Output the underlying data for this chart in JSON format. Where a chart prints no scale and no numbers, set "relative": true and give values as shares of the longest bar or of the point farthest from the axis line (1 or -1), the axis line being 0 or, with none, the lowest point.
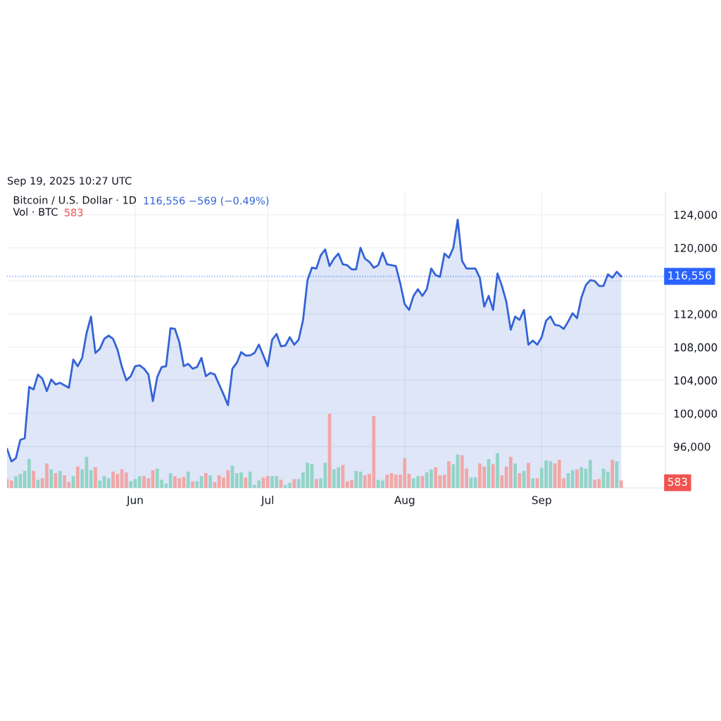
{
  "chart_data": [
    {
      "type": "area",
      "title": "Bitcoin / U.S. Dollar · 1D",
      "annotations": [
        "Sep 19, 2025 10:27 UTC",
        "116,556 −569 (−0.49%)"
      ],
      "x": [
        "2025-05-03",
        "2025-05-04",
        "2025-05-05",
        "2025-05-06",
        "2025-05-07",
        "2025-05-08",
        "2025-05-09",
        "2025-05-10",
        "2025-05-11",
        "2025-05-12",
        "2025-05-13",
        "2025-05-14",
        "2025-05-15",
        "2025-05-16",
        "2025-05-17",
        "2025-05-18",
        "2025-05-19",
        "2025-05-20",
        "2025-05-21",
        "2025-05-22",
        "2025-05-23",
        "2025-05-24",
        "2025-05-25",
        "2025-05-26",
        "2025-05-27",
        "2025-05-28",
        "2025-05-29",
        "2025-05-30",
        "2025-05-31",
        "2025-06-01",
        "2025-06-02",
        "2025-06-03",
        "2025-06-04",
        "2025-06-05",
        "2025-06-06",
        "2025-06-07",
        "2025-06-08",
        "2025-06-09",
        "2025-06-10",
        "2025-06-11",
        "2025-06-12",
        "2025-06-13",
        "2025-06-14",
        "2025-06-15",
        "2025-06-16",
        "2025-06-17",
        "2025-06-18",
        "2025-06-19",
        "2025-06-20",
        "2025-06-21",
        "2025-06-22",
        "2025-06-23",
        "2025-06-24",
        "2025-06-25",
        "2025-06-26",
        "2025-06-27",
        "2025-06-28",
        "2025-06-29",
        "2025-06-30",
        "2025-07-01",
        "2025-07-02",
        "2025-07-03",
        "2025-07-04",
        "2025-07-05",
        "2025-07-06",
        "2025-07-07",
        "2025-07-08",
        "2025-07-09",
        "2025-07-10",
        "2025-07-11",
        "2025-07-12",
        "2025-07-13",
        "2025-07-14",
        "2025-07-15",
        "2025-07-16",
        "2025-07-17",
        "2025-07-18",
        "2025-07-19",
        "2025-07-20",
        "2025-07-21",
        "2025-07-22",
        "2025-07-23",
        "2025-07-24",
        "2025-07-25",
        "2025-07-26",
        "2025-07-27",
        "2025-07-28",
        "2025-07-29",
        "2025-07-30",
        "2025-07-31",
        "2025-08-01",
        "2025-08-02",
        "2025-08-03",
        "2025-08-04",
        "2025-08-05",
        "2025-08-06",
        "2025-08-07",
        "2025-08-08",
        "2025-08-09",
        "2025-08-10",
        "2025-08-11",
        "2025-08-12",
        "2025-08-13",
        "2025-08-14",
        "2025-08-15",
        "2025-08-16",
        "2025-08-17",
        "2025-08-18",
        "2025-08-19",
        "2025-08-20",
        "2025-08-21",
        "2025-08-22",
        "2025-08-23",
        "2025-08-24",
        "2025-08-25",
        "2025-08-26",
        "2025-08-27",
        "2025-08-28",
        "2025-08-29",
        "2025-08-30",
        "2025-08-31",
        "2025-09-01",
        "2025-09-02",
        "2025-09-03",
        "2025-09-04",
        "2025-09-05",
        "2025-09-06",
        "2025-09-07",
        "2025-09-08",
        "2025-09-09",
        "2025-09-10",
        "2025-09-11",
        "2025-09-12",
        "2025-09-13",
        "2025-09-14",
        "2025-09-15",
        "2025-09-16",
        "2025-09-17",
        "2025-09-18",
        "2025-09-19"
      ],
      "series": [
        {
          "color": "#3363d6",
          "values": [
            95700,
            94200,
            94600,
            96800,
            97000,
            103200,
            102900,
            104700,
            104200,
            102700,
            104100,
            103500,
            103700,
            103400,
            103100,
            106500,
            105700,
            106700,
            109700,
            111700,
            107300,
            107800,
            109000,
            109400,
            109000,
            107700,
            105600,
            104000,
            104500,
            105700,
            105800,
            105400,
            104700,
            101500,
            104400,
            105600,
            105700,
            110300,
            110200,
            108600,
            105700,
            106000,
            105400,
            105600,
            106700,
            104500,
            104900,
            104700,
            103500,
            102300,
            101000,
            105400,
            106100,
            107400,
            107000,
            107000,
            107300,
            108300,
            107000,
            105700,
            108900,
            109600,
            108100,
            108200,
            109200,
            108300,
            108900,
            111300,
            116100,
            117600,
            117500,
            119100,
            119800,
            117800,
            118700,
            119300,
            118000,
            117900,
            117400,
            117400,
            120000,
            118700,
            118300,
            117600,
            117900,
            119400,
            118000,
            117900,
            117800,
            115700,
            113200,
            112500,
            114200,
            115000,
            114200,
            115000,
            117500,
            116700,
            116500,
            119300,
            118800,
            120000,
            123400,
            118400,
            117500,
            117500,
            117500,
            116400,
            112900,
            114200,
            112500,
            116900,
            115400,
            113500,
            110100,
            111700,
            111300,
            112500,
            108300,
            108800,
            108300,
            109200,
            111200,
            111700,
            110700,
            110600,
            110200,
            111100,
            112100,
            111500,
            114000,
            115500,
            116100,
            116000,
            115400,
            115400,
            116800,
            116400,
            117100,
            116556
          ]
        }
      ],
      "xlim": [
        "2025-05-03",
        "2025-09-29"
      ],
      "xticks": [
        {
          "value": "2025-06-01",
          "label": "Jun"
        },
        {
          "value": "2025-07-01",
          "label": "Jul"
        },
        {
          "value": "2025-08-01",
          "label": "Aug"
        },
        {
          "value": "2025-09-01",
          "label": "Sep"
        }
      ],
      "ylim": [
        91000,
        126800
      ],
      "yticks": [
        {
          "value": 96000,
          "label": "96,000"
        },
        {
          "value": 100000,
          "label": "100,000"
        },
        {
          "value": 104000,
          "label": "104,000"
        },
        {
          "value": 108000,
          "label": "108,000"
        },
        {
          "value": 112000,
          "label": "112,000"
        },
        {
          "value": 116000,
          "label": null
        },
        {
          "value": 120000,
          "label": "120,000"
        },
        {
          "value": 124000,
          "label": "124,000"
        }
      ],
      "ref_lines": [
        {
          "axis": "y",
          "value": 116556,
          "label": "116,556",
          "color": "#2962ff",
          "line_style": "dotted"
        }
      ],
      "grid": true
    },
    {
      "type": "bar",
      "relative": true,
      "title": "Vol · BTC",
      "annotations": [
        "583",
        "583"
      ],
      "tick_labels": false,
      "xlim": [
        "2025-05-03",
        "2025-09-29"
      ],
      "x": [
        "2025-05-03",
        "2025-05-04",
        "2025-05-05",
        "2025-05-06",
        "2025-05-07",
        "2025-05-08",
        "2025-05-09",
        "2025-05-10",
        "2025-05-11",
        "2025-05-12",
        "2025-05-13",
        "2025-05-14",
        "2025-05-15",
        "2025-05-16",
        "2025-05-17",
        "2025-05-18",
        "2025-05-19",
        "2025-05-20",
        "2025-05-21",
        "2025-05-22",
        "2025-05-23",
        "2025-05-24",
        "2025-05-25",
        "2025-05-26",
        "2025-05-27",
        "2025-05-28",
        "2025-05-29",
        "2025-05-30",
        "2025-05-31",
        "2025-06-01",
        "2025-06-02",
        "2025-06-03",
        "2025-06-04",
        "2025-06-05",
        "2025-06-06",
        "2025-06-07",
        "2025-06-08",
        "2025-06-09",
        "2025-06-10",
        "2025-06-11",
        "2025-06-12",
        "2025-06-13",
        "2025-06-14",
        "2025-06-15",
        "2025-06-16",
        "2025-06-17",
        "2025-06-18",
        "2025-06-19",
        "2025-06-20",
        "2025-06-21",
        "2025-06-22",
        "2025-06-23",
        "2025-06-24",
        "2025-06-25",
        "2025-06-26",
        "2025-06-27",
        "2025-06-28",
        "2025-06-29",
        "2025-06-30",
        "2025-07-01",
        "2025-07-02",
        "2025-07-03",
        "2025-07-04",
        "2025-07-05",
        "2025-07-06",
        "2025-07-07",
        "2025-07-08",
        "2025-07-09",
        "2025-07-10",
        "2025-07-11",
        "2025-07-12",
        "2025-07-13",
        "2025-07-14",
        "2025-07-15",
        "2025-07-16",
        "2025-07-17",
        "2025-07-18",
        "2025-07-19",
        "2025-07-20",
        "2025-07-21",
        "2025-07-22",
        "2025-07-23",
        "2025-07-24",
        "2025-07-25",
        "2025-07-26",
        "2025-07-27",
        "2025-07-28",
        "2025-07-29",
        "2025-07-30",
        "2025-07-31",
        "2025-08-01",
        "2025-08-02",
        "2025-08-03",
        "2025-08-04",
        "2025-08-05",
        "2025-08-06",
        "2025-08-07",
        "2025-08-08",
        "2025-08-09",
        "2025-08-10",
        "2025-08-11",
        "2025-08-12",
        "2025-08-13",
        "2025-08-14",
        "2025-08-15",
        "2025-08-16",
        "2025-08-17",
        "2025-08-18",
        "2025-08-19",
        "2025-08-20",
        "2025-08-21",
        "2025-08-22",
        "2025-08-23",
        "2025-08-24",
        "2025-08-25",
        "2025-08-26",
        "2025-08-27",
        "2025-08-28",
        "2025-08-29",
        "2025-08-30",
        "2025-08-31",
        "2025-09-01",
        "2025-09-02",
        "2025-09-03",
        "2025-09-04",
        "2025-09-05",
        "2025-09-06",
        "2025-09-07",
        "2025-09-08",
        "2025-09-09",
        "2025-09-10",
        "2025-09-11",
        "2025-09-12",
        "2025-09-13",
        "2025-09-14",
        "2025-09-15",
        "2025-09-16",
        "2025-09-17",
        "2025-09-18",
        "2025-09-19"
      ],
      "values": [
        0.12,
        0.1,
        0.16,
        0.19,
        0.23,
        0.39,
        0.23,
        0.11,
        0.13,
        0.33,
        0.25,
        0.2,
        0.23,
        0.17,
        0.08,
        0.16,
        0.29,
        0.25,
        0.42,
        0.24,
        0.28,
        0.1,
        0.16,
        0.13,
        0.22,
        0.19,
        0.25,
        0.21,
        0.09,
        0.12,
        0.16,
        0.16,
        0.13,
        0.24,
        0.26,
        0.11,
        0.06,
        0.2,
        0.16,
        0.13,
        0.15,
        0.22,
        0.09,
        0.09,
        0.16,
        0.2,
        0.17,
        0.08,
        0.17,
        0.14,
        0.24,
        0.3,
        0.2,
        0.21,
        0.14,
        0.22,
        0.04,
        0.1,
        0.14,
        0.16,
        0.16,
        0.16,
        0.11,
        0.04,
        0.07,
        0.12,
        0.12,
        0.21,
        0.34,
        0.32,
        0.12,
        0.13,
        0.34,
        1,
        0.25,
        0.28,
        0.31,
        0.09,
        0.11,
        0.23,
        0.22,
        0.17,
        0.19,
        0.97,
        0.11,
        0.1,
        0.18,
        0.2,
        0.18,
        0.18,
        0.4,
        0.19,
        0.13,
        0.16,
        0.16,
        0.21,
        0.25,
        0.28,
        0.17,
        0.18,
        0.36,
        0.32,
        0.45,
        0.44,
        0.26,
        0.14,
        0.14,
        0.33,
        0.29,
        0.39,
        0.32,
        0.47,
        0.17,
        0.29,
        0.42,
        0.33,
        0.2,
        0.23,
        0.34,
        0.13,
        0.13,
        0.27,
        0.37,
        0.36,
        0.33,
        0.38,
        0.13,
        0.2,
        0.24,
        0.25,
        0.28,
        0.26,
        0.38,
        0.11,
        0.12,
        0.26,
        0.22,
        0.38,
        0.36,
        0.1
      ],
      "colors": [
        "#f1a7a6",
        "#f1a7a6",
        "#92d4c6",
        "#92d4c6",
        "#92d4c6",
        "#92d4c6",
        "#f1a7a6",
        "#92d4c6",
        "#f1a7a6",
        "#f1a7a6",
        "#92d4c6",
        "#f1a7a6",
        "#92d4c6",
        "#f1a7a6",
        "#f1a7a6",
        "#92d4c6",
        "#f1a7a6",
        "#92d4c6",
        "#92d4c6",
        "#92d4c6",
        "#f1a7a6",
        "#92d4c6",
        "#92d4c6",
        "#92d4c6",
        "#f1a7a6",
        "#f1a7a6",
        "#f1a7a6",
        "#f1a7a6",
        "#92d4c6",
        "#92d4c6",
        "#92d4c6",
        "#f1a7a6",
        "#f1a7a6",
        "#f1a7a6",
        "#92d4c6",
        "#92d4c6",
        "#92d4c6",
        "#92d4c6",
        "#f1a7a6",
        "#f1a7a6",
        "#f1a7a6",
        "#92d4c6",
        "#f1a7a6",
        "#92d4c6",
        "#92d4c6",
        "#f1a7a6",
        "#92d4c6",
        "#f1a7a6",
        "#f1a7a6",
        "#f1a7a6",
        "#f1a7a6",
        "#92d4c6",
        "#92d4c6",
        "#92d4c6",
        "#f1a7a6",
        "#92d4c6",
        "#92d4c6",
        "#92d4c6",
        "#f1a7a6",
        "#f1a7a6",
        "#92d4c6",
        "#92d4c6",
        "#f1a7a6",
        "#92d4c6",
        "#92d4c6",
        "#f1a7a6",
        "#92d4c6",
        "#92d4c6",
        "#92d4c6",
        "#92d4c6",
        "#f1a7a6",
        "#92d4c6",
        "#92d4c6",
        "#f1a7a6",
        "#92d4c6",
        "#92d4c6",
        "#f1a7a6",
        "#f1a7a6",
        "#f1a7a6",
        "#92d4c6",
        "#92d4c6",
        "#f1a7a6",
        "#f1a7a6",
        "#f1a7a6",
        "#92d4c6",
        "#92d4c6",
        "#f1a7a6",
        "#f1a7a6",
        "#f1a7a6",
        "#f1a7a6",
        "#f1a7a6",
        "#f1a7a6",
        "#92d4c6",
        "#92d4c6",
        "#f1a7a6",
        "#92d4c6",
        "#92d4c6",
        "#f1a7a6",
        "#f1a7a6",
        "#f1a7a6",
        "#f1a7a6",
        "#92d4c6",
        "#92d4c6",
        "#f1a7a6",
        "#f1a7a6",
        "#92d4c6",
        "#92d4c6",
        "#f1a7a6",
        "#f1a7a6",
        "#92d4c6",
        "#f1a7a6",
        "#92d4c6",
        "#f1a7a6",
        "#f1a7a6",
        "#f1a7a6",
        "#92d4c6",
        "#f1a7a6",
        "#92d4c6",
        "#f1a7a6",
        "#92d4c6",
        "#f1a7a6",
        "#92d4c6",
        "#92d4c6",
        "#92d4c6",
        "#f1a7a6",
        "#f1a7a6",
        "#f1a7a6",
        "#92d4c6",
        "#92d4c6",
        "#f1a7a6",
        "#92d4c6",
        "#92d4c6",
        "#92d4c6",
        "#f1a7a6",
        "#f1a7a6",
        "#92d4c6",
        "#92d4c6",
        "#f1a7a6",
        "#92d4c6",
        "#f1a7a6"
      ]
    }
  ]
}
